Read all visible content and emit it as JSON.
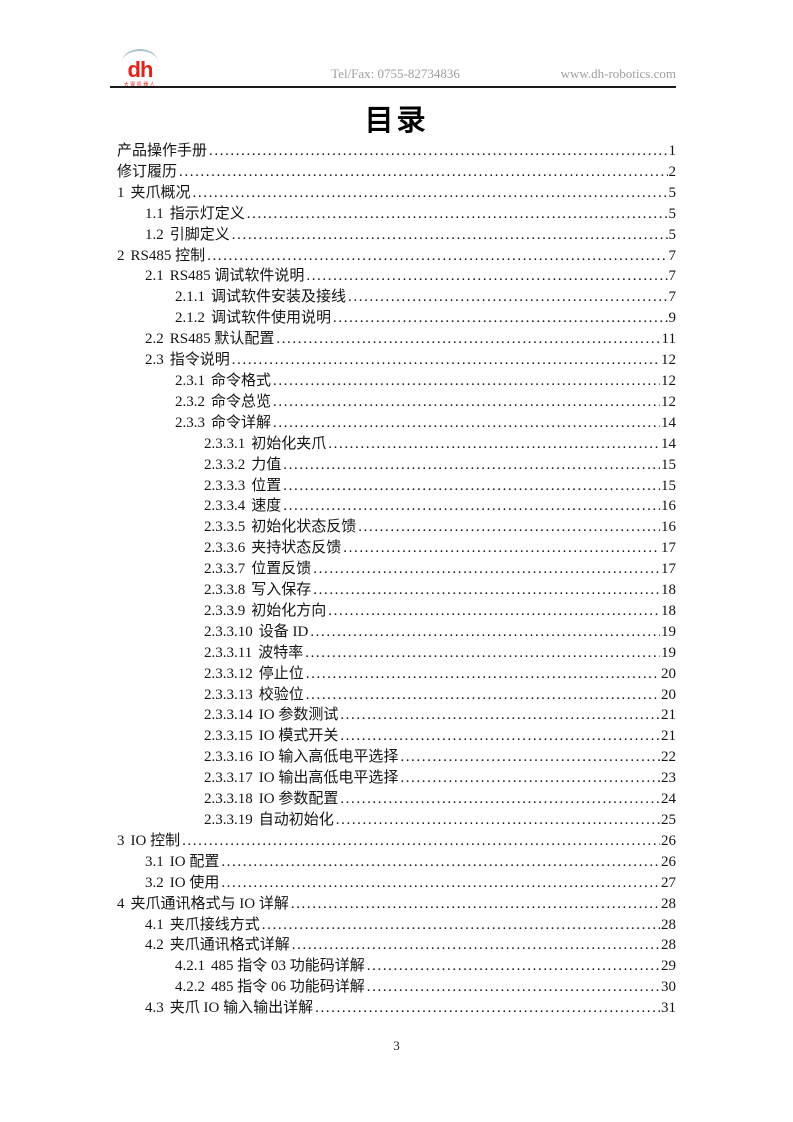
{
  "header": {
    "logo": {
      "text": "dh",
      "subtext": "大寰机器人",
      "brand_color": "#e2231a",
      "arc_color": "#a9c0cf"
    },
    "telfax": "Tel/Fax: 0755-82734836",
    "website": "www.dh-robotics.com",
    "text_color": "#9e9e9e"
  },
  "title": "目录",
  "toc": {
    "entries": [
      {
        "num": "",
        "text": "产品操作手册",
        "page": "1",
        "level": 0
      },
      {
        "num": "",
        "text": "修订履历",
        "page": "2",
        "level": 0
      },
      {
        "num": "1",
        "text": "夹爪概况",
        "page": "5",
        "level": 0
      },
      {
        "num": "1.1",
        "text": "指示灯定义",
        "page": "5",
        "level": 1
      },
      {
        "num": "1.2",
        "text": "引脚定义",
        "page": "5",
        "level": 1
      },
      {
        "num": "2",
        "text": "RS485 控制",
        "page": "7",
        "level": 0
      },
      {
        "num": "2.1",
        "text": "RS485 调试软件说明",
        "page": "7",
        "level": 1
      },
      {
        "num": "2.1.1",
        "text": "调试软件安装及接线",
        "page": "7",
        "level": 2
      },
      {
        "num": "2.1.2",
        "text": "调试软件使用说明",
        "page": "9",
        "level": 2
      },
      {
        "num": "2.2",
        "text": "RS485 默认配置",
        "page": "11",
        "level": 1
      },
      {
        "num": "2.3",
        "text": "指令说明",
        "page": "12",
        "level": 1
      },
      {
        "num": "2.3.1",
        "text": "命令格式",
        "page": "12",
        "level": 2
      },
      {
        "num": "2.3.2",
        "text": "命令总览",
        "page": "12",
        "level": 2
      },
      {
        "num": "2.3.3",
        "text": "命令详解",
        "page": "14",
        "level": 2
      },
      {
        "num": "2.3.3.1",
        "text": "初始化夹爪",
        "page": "14",
        "level": 3
      },
      {
        "num": "2.3.3.2",
        "text": "力值",
        "page": "15",
        "level": 3
      },
      {
        "num": "2.3.3.3",
        "text": "位置",
        "page": "15",
        "level": 3
      },
      {
        "num": "2.3.3.4",
        "text": "速度",
        "page": "16",
        "level": 3
      },
      {
        "num": "2.3.3.5",
        "text": "初始化状态反馈",
        "page": "16",
        "level": 3
      },
      {
        "num": "2.3.3.6",
        "text": "夹持状态反馈",
        "page": "17",
        "level": 3
      },
      {
        "num": "2.3.3.7",
        "text": "位置反馈",
        "page": "17",
        "level": 3
      },
      {
        "num": "2.3.3.8",
        "text": "写入保存",
        "page": "18",
        "level": 3
      },
      {
        "num": "2.3.3.9",
        "text": "初始化方向",
        "page": "18",
        "level": 3
      },
      {
        "num": "2.3.3.10",
        "text": "设备 ID",
        "page": "19",
        "level": 3
      },
      {
        "num": "2.3.3.11",
        "text": "波特率",
        "page": "19",
        "level": 3
      },
      {
        "num": "2.3.3.12",
        "text": "停止位",
        "page": "20",
        "level": 3
      },
      {
        "num": "2.3.3.13",
        "text": "校验位",
        "page": "20",
        "level": 3
      },
      {
        "num": "2.3.3.14",
        "text": "IO 参数测试",
        "page": "21",
        "level": 3
      },
      {
        "num": "2.3.3.15",
        "text": "IO 模式开关",
        "page": "21",
        "level": 3
      },
      {
        "num": "2.3.3.16",
        "text": "IO 输入高低电平选择",
        "page": "22",
        "level": 3
      },
      {
        "num": "2.3.3.17",
        "text": "IO 输出高低电平选择",
        "page": "23",
        "level": 3
      },
      {
        "num": "2.3.3.18",
        "text": "IO 参数配置",
        "page": "24",
        "level": 3
      },
      {
        "num": "2.3.3.19",
        "text": "自动初始化",
        "page": "25",
        "level": 3
      },
      {
        "num": "3",
        "text": "IO 控制",
        "page": "26",
        "level": 0
      },
      {
        "num": "3.1",
        "text": "IO 配置",
        "page": "26",
        "level": 1
      },
      {
        "num": "3.2",
        "text": "IO 使用",
        "page": "27",
        "level": 1
      },
      {
        "num": "4",
        "text": "夹爪通讯格式与 IO 详解",
        "page": "28",
        "level": 0
      },
      {
        "num": "4.1",
        "text": "夹爪接线方式",
        "page": "28",
        "level": 1
      },
      {
        "num": "4.2",
        "text": "夹爪通讯格式详解",
        "page": "28",
        "level": 1
      },
      {
        "num": "4.2.1",
        "text": "485 指令 03 功能码详解",
        "page": "29",
        "level": 2
      },
      {
        "num": "4.2.2",
        "text": "485 指令 06 功能码详解",
        "page": "30",
        "level": 2
      },
      {
        "num": "4.3",
        "text": "夹爪 IO 输入输出详解",
        "page": "31",
        "level": 1
      }
    ]
  },
  "footer": {
    "page_number": "3"
  }
}
